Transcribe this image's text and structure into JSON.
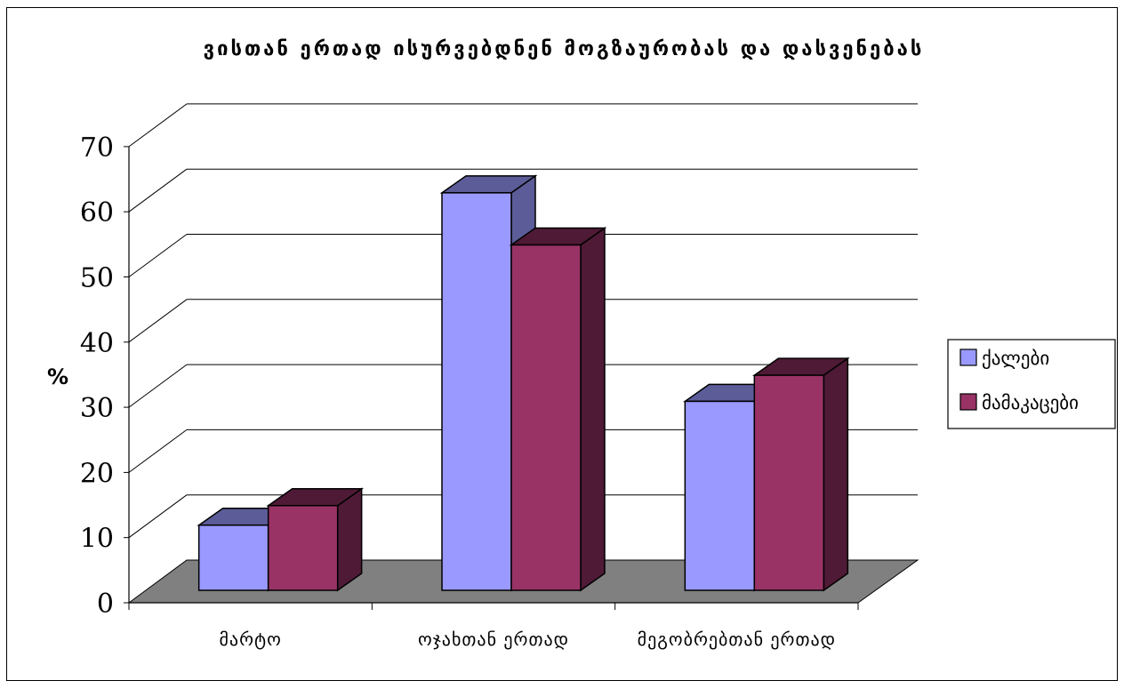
{
  "chart_data": {
    "type": "bar",
    "title": "ვისთან ერთად ისურვებდნენ მოგზაურობას და დასვენებას",
    "ylabel": "%",
    "xlabel": "",
    "categories": [
      "მარტო",
      "ოჯახთან ერთად",
      "მეგობრებთან ერთად"
    ],
    "series": [
      {
        "name": "ქალები",
        "values": [
          10,
          61,
          29
        ],
        "color": "#9999ff",
        "dark": "#5c5c99"
      },
      {
        "name": "მამაკაცები",
        "values": [
          13,
          53,
          33
        ],
        "color": "#993366",
        "dark": "#4f1a36"
      }
    ],
    "ylim": [
      0,
      70
    ],
    "yticks": [
      "0",
      "10",
      "20",
      "30",
      "40",
      "50",
      "60",
      "70"
    ],
    "grid": true,
    "legend_position": "right",
    "style": "3d-clustered",
    "floor_color": "#808080"
  }
}
